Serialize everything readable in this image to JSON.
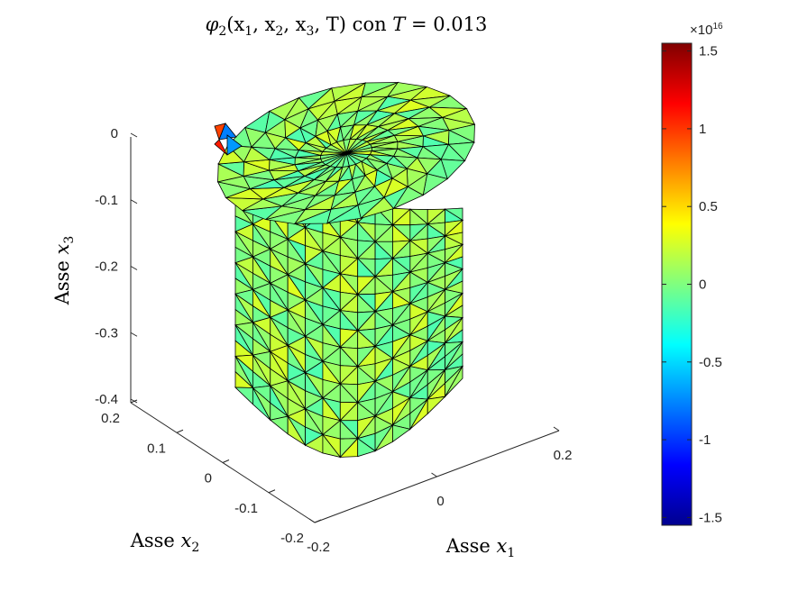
{
  "chart_data": {
    "type": "surface-3d",
    "title": {
      "phi": "φ",
      "phi_sub": "2",
      "args": "(x",
      "args2": ", x",
      "args3": ", x",
      "args4": ", T) con ",
      "T": "T",
      "eq": " = 0.013",
      "sub1": "1",
      "sub2": "2",
      "sub3": "3"
    },
    "axes": {
      "x1": {
        "label": "Asse",
        "var": "x",
        "sub": "1",
        "ticks": [
          "-0.2",
          "0",
          "0.2"
        ],
        "values": [
          -0.2,
          0,
          0.2
        ]
      },
      "x2": {
        "label": "Asse",
        "var": "x",
        "sub": "2",
        "ticks": [
          "-0.2",
          "-0.1",
          "0",
          "0.1",
          "0.2"
        ],
        "values": [
          -0.2,
          -0.1,
          0,
          0.1,
          0.2
        ]
      },
      "x3": {
        "label": "Asse",
        "var": "x",
        "sub": "3",
        "ticks": [
          "0",
          "-0.1",
          "-0.2",
          "-0.3",
          "-0.4"
        ],
        "values": [
          0,
          -0.1,
          -0.2,
          -0.3,
          -0.4
        ]
      }
    },
    "colorbar": {
      "colormap": "jet",
      "exponent_prefix": "×10",
      "exponent": "16",
      "range": [
        -1.55,
        1.55
      ],
      "ticks": [
        "1.5",
        "1",
        "0.5",
        "0",
        "-0.5",
        "-1",
        "-1.5"
      ],
      "tick_values": [
        1.5,
        1,
        0.5,
        0,
        -0.5,
        -1,
        -1.5
      ]
    },
    "surface": {
      "shape": "stadium cylinder (rounded ends), triangulated mesh",
      "value_range_typical": [
        -0.35,
        0.45
      ],
      "edge_color": "#000000"
    }
  }
}
